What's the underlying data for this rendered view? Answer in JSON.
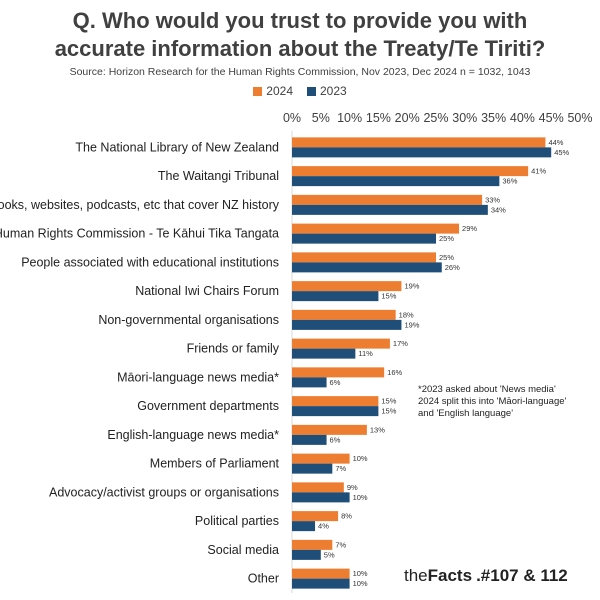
{
  "header": {
    "title_line1": "Q. Who would you trust to provide you with",
    "title_line2": "accurate information about the Treaty/Te Tiriti?",
    "source": "Source: Horizon Research for the Human Rights Commission, Nov 2023, Dec 2024    n = 1032, 1043"
  },
  "note": {
    "line1": "*2023 asked about 'News media'",
    "line2": "2024 split this into 'Māori-language'",
    "line3": "and 'English language'"
  },
  "brand": {
    "part1": "the",
    "part2": "Facts",
    "part3": ".#107 & 112"
  },
  "chart_data": {
    "type": "bar",
    "orientation": "horizontal",
    "title": "Q. Who would you trust to provide you with accurate information about the Treaty/Te Tiriti?",
    "xlim": [
      0,
      50
    ],
    "ticks": [
      "0%",
      "5%",
      "10%",
      "15%",
      "20%",
      "25%",
      "30%",
      "35%",
      "40%",
      "45%",
      "50%"
    ],
    "legend_position": "top",
    "grid": false,
    "categories": [
      "The National Library of New Zealand",
      "The Waitangi Tribunal",
      "Books, websites, podcasts, etc that cover NZ history",
      "Human Rights Commission - Te Kāhui Tika Tangata",
      "People associated with educational institutions",
      "National Iwi Chairs Forum",
      "Non-governmental organisations",
      "Friends or family",
      "Māori-language news media*",
      "Government departments",
      "English-language news media*",
      "Members of Parliament",
      "Advocacy/activist groups or organisations",
      "Political parties",
      "Social media",
      "Other"
    ],
    "series": [
      {
        "name": "2024",
        "color": "#ED7D31",
        "values": [
          44,
          41,
          33,
          29,
          25,
          19,
          18,
          17,
          16,
          15,
          13,
          10,
          9,
          8,
          7,
          10
        ],
        "labels": [
          "44%",
          "41%",
          "33%",
          "29%",
          "25%",
          "19%",
          "18%",
          "17%",
          "16%",
          "15%",
          "13%",
          "10%",
          "9%",
          "8%",
          "7%",
          "10%"
        ]
      },
      {
        "name": "2023",
        "color": "#1F4E79",
        "values": [
          45,
          36,
          34,
          25,
          26,
          15,
          19,
          11,
          6,
          15,
          6,
          7,
          10,
          4,
          5,
          10
        ],
        "labels": [
          "45%",
          "36%",
          "34%",
          "25%",
          "26%",
          "15%",
          "19%",
          "11%",
          "6%",
          "15%",
          "6%",
          "7%",
          "10%",
          "4%",
          "5%",
          "10%"
        ]
      }
    ]
  }
}
